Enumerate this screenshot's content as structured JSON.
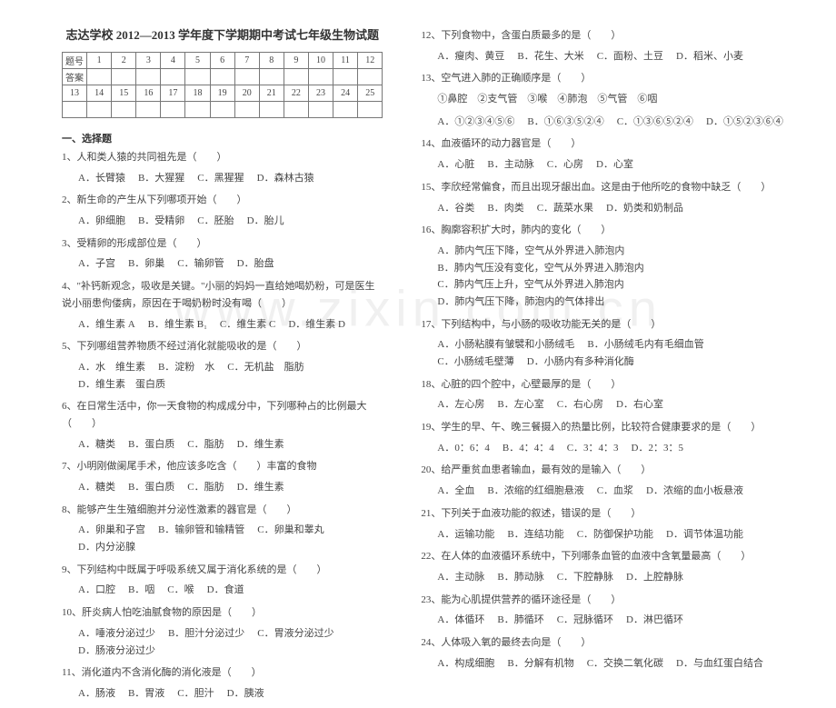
{
  "watermark": "www.zixin.com.cn",
  "title": "志达学校 2012—2013 学年度下学期期中考试七年级生物试题",
  "grid": {
    "row1": [
      "题号",
      "1",
      "2",
      "3",
      "4",
      "5",
      "6",
      "7",
      "8",
      "9",
      "10",
      "11",
      "12"
    ],
    "row2": [
      "答案",
      "",
      "",
      "",
      "",
      "",
      "",
      "",
      "",
      "",
      "",
      "",
      ""
    ],
    "row3": [
      "13",
      "14",
      "15",
      "16",
      "17",
      "18",
      "19",
      "20",
      "21",
      "22",
      "23",
      "24",
      "25"
    ],
    "row4": [
      "",
      "",
      "",
      "",
      "",
      "",
      "",
      "",
      "",
      "",
      "",
      "",
      ""
    ]
  },
  "section1_head": "一、选择题",
  "left": [
    {
      "q": "1、人和类人猿的共同祖先是（　　）",
      "opts": [
        "A．长臂猿",
        "B．大猩猩",
        "C．黑猩猩",
        "D．森林古猿"
      ]
    },
    {
      "q": "2、新生命的产生从下列哪项开始（　　）",
      "opts": [
        "A．卵细胞",
        "B．受精卵",
        "C．胚胎",
        "D．胎儿"
      ]
    },
    {
      "q": "3、受精卵的形成部位是（　　）",
      "opts": [
        "A．子宫",
        "B．卵巢",
        "C．输卵管",
        "D．胎盘"
      ]
    },
    {
      "q": "4、\"补钙新观念，吸收是关键。\"小丽的妈妈一直给她喝奶粉，可是医生说小丽患佝偻病，原因在于喝奶粉时没有喝（　　）",
      "opts": [
        "A．维生素 A",
        "B．维生素 B₁",
        "C．维生素 C",
        "D．维生素 D"
      ]
    },
    {
      "q": "5、下列哪组营养物质不经过消化就能吸收的是（　　）",
      "opts": [
        "A．水　维生素",
        "B．淀粉　水",
        "C．无机盐　脂肪",
        "D．维生素　蛋白质"
      ]
    },
    {
      "q": "6、在日常生活中，你一天食物的构成成分中，下列哪种占的比例最大（　　）",
      "opts": [
        "A．糖类",
        "B．蛋白质",
        "C．脂肪",
        "D．维生素"
      ]
    },
    {
      "q": "7、小明刚做阑尾手术，他应该多吃含（　　）丰富的食物",
      "opts": [
        "A．糖类",
        "B．蛋白质",
        "C．脂肪",
        "D．维生素"
      ]
    },
    {
      "q": "8、能够产生生殖细胞并分泌性激素的器官是（　　）",
      "opts": [
        "A．卵巢和子宫",
        "B．输卵管和输精管",
        "C．卵巢和睾丸",
        "D．内分泌腺"
      ]
    },
    {
      "q": "9、下列结构中既属于呼吸系统又属于消化系统的是（　　）",
      "opts": [
        "A．口腔",
        "B．咽",
        "C．喉",
        "D．食道"
      ]
    },
    {
      "q": "10、肝炎病人怕吃油腻食物的原因是（　　）",
      "opts": [
        "A．唾液分泌过少",
        "B．胆汁分泌过少",
        "C．胃液分泌过少",
        "D．肠液分泌过少"
      ]
    },
    {
      "q": "11、消化道内不含消化酶的消化液是（　　）",
      "opts": [
        "A．肠液",
        "B．胃液",
        "C．胆汁",
        "D．胰液"
      ]
    }
  ],
  "right": [
    {
      "q": "12、下列食物中，含蛋白质最多的是（　　）",
      "opts": [
        "A．瘦肉、黄豆",
        "B．花生、大米",
        "C．面粉、土豆",
        "D．稻米、小麦"
      ]
    },
    {
      "q": "13、空气进入肺的正确顺序是（　　）",
      "sub": "①鼻腔　②支气管　③喉　④肺泡　⑤气管　⑥咽",
      "opts": [
        "A．①②③④⑤⑥",
        "B．①⑥③⑤②④",
        "C．①③⑥⑤②④",
        "D．①⑤②③⑥④"
      ]
    },
    {
      "q": "14、血液循环的动力器官是（　　）",
      "opts": [
        "A．心脏",
        "B．主动脉",
        "C．心房",
        "D．心室"
      ]
    },
    {
      "q": "15、李欣经常偏食，而且出现牙龈出血。这是由于他所吃的食物中缺乏（　　）",
      "opts": [
        "A．谷类",
        "B．肉类",
        "C．蔬菜水果",
        "D．奶类和奶制品"
      ]
    },
    {
      "q": "16、胸廓容积扩大时，肺内的变化（　　）",
      "opts": [
        "A．肺内气压下降，空气从外界进入肺泡内",
        "B．肺内气压没有变化，空气从外界进入肺泡内",
        "C．肺内气压上升，空气从外界进入肺泡内",
        "D．肺内气压下降，肺泡内的气体排出"
      ]
    },
    {
      "q": "17、下列结构中，与小肠的吸收功能无关的是（　　）",
      "opts": [
        "A．小肠粘膜有皱襞和小肠绒毛",
        "B．小肠绒毛内有毛细血管",
        "C．小肠绒毛壁薄",
        "D．小肠内有多种消化酶"
      ]
    },
    {
      "q": "18、心脏的四个腔中，心壁最厚的是（　　）",
      "opts": [
        "A．左心房",
        "B．左心室",
        "C．右心房",
        "D．右心室"
      ]
    },
    {
      "q": "19、学生的早、午、晚三餐摄入的热量比例，比较符合健康要求的是（　　）",
      "opts": [
        "A．0：6：4",
        "B．4：4：4",
        "C．3：4：3",
        "D．2：3：5"
      ]
    },
    {
      "q": "20、给严重贫血患者输血，最有效的是输入（　　）",
      "opts": [
        "A．全血",
        "B．浓缩的红细胞悬液",
        "C．血浆",
        "D．浓缩的血小板悬液"
      ]
    },
    {
      "q": "21、下列关于血液功能的叙述，错误的是（　　）",
      "opts": [
        "A．运输功能",
        "B．连结功能",
        "C．防御保护功能",
        "D．调节体温功能"
      ]
    },
    {
      "q": "22、在人体的血液循环系统中，下列哪条血管的血液中含氧量最高（　　）",
      "opts": [
        "A．主动脉",
        "B．肺动脉",
        "C．下腔静脉",
        "D．上腔静脉"
      ]
    },
    {
      "q": "23、能为心肌提供营养的循环途径是（　　）",
      "opts": [
        "A．体循环",
        "B．肺循环",
        "C．冠脉循环",
        "D．淋巴循环"
      ]
    },
    {
      "q": "24、人体吸入氧的最终去向是（　　）",
      "opts": [
        "A．构成细胞",
        "B．分解有机物",
        "C．交换二氧化碳",
        "D．与血红蛋白结合"
      ]
    }
  ]
}
